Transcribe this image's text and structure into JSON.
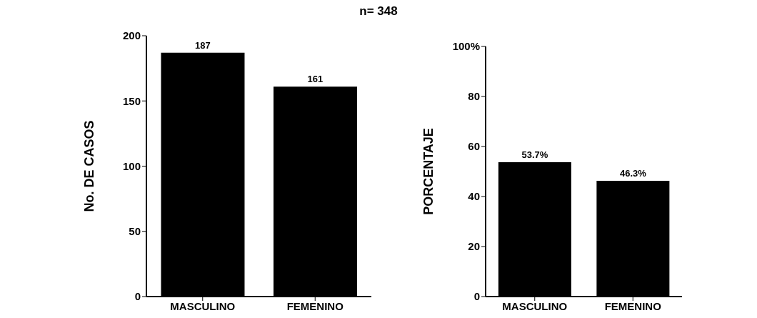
{
  "chart_data": [
    {
      "type": "bar",
      "title": "n= 348",
      "ylabel": "No. DE CASOS",
      "categories": [
        "MASCULINO",
        "FEMENINO"
      ],
      "values": [
        187,
        161
      ],
      "color": "#000000",
      "ylim": [
        0,
        200
      ],
      "yticks": [
        0,
        50,
        100,
        150,
        200
      ],
      "data_labels": true,
      "grid": false,
      "legend": false
    },
    {
      "type": "bar",
      "ylabel": "PORCENTAJE",
      "categories": [
        "MASCULINO",
        "FEMENINO"
      ],
      "values": [
        53.7,
        46.3
      ],
      "value_labels": [
        "53.7%",
        "46.3%"
      ],
      "color": "#000000",
      "ylim": [
        0,
        100
      ],
      "yticks": [
        0,
        20,
        40,
        60,
        80,
        {
          "value": 100,
          "label": "100%"
        }
      ],
      "grid": false,
      "legend": false
    }
  ]
}
